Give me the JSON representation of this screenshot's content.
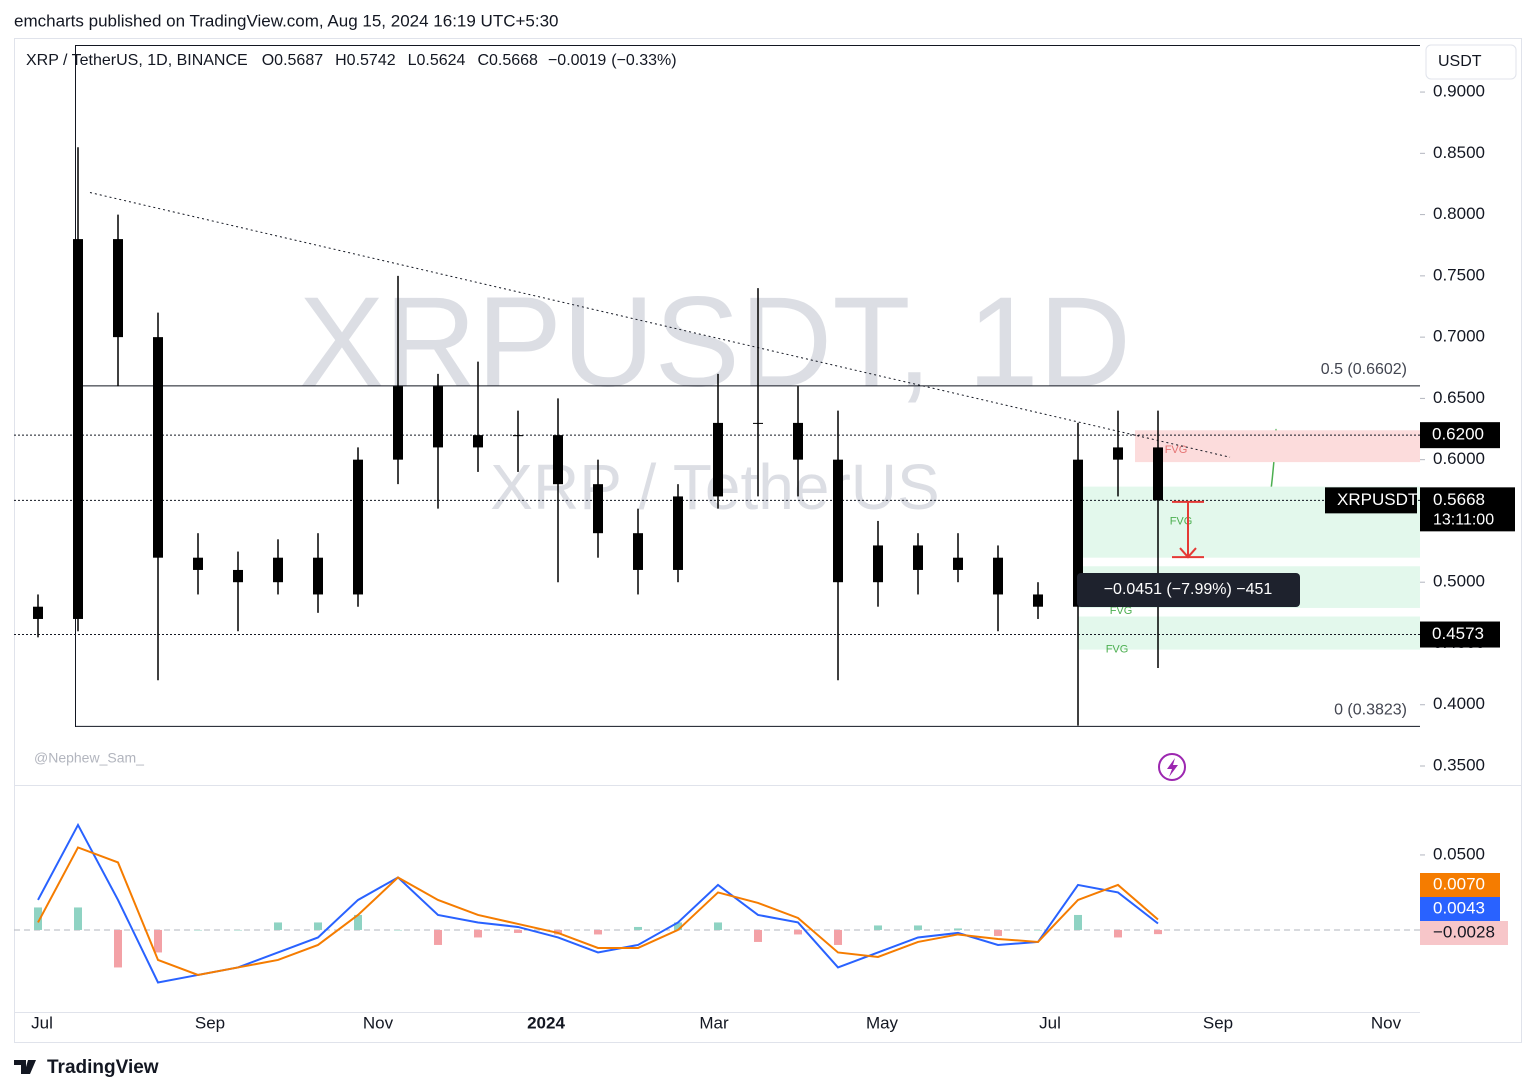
{
  "header": {
    "publisher": "emcharts published on TradingView.com, Aug 15, 2024 16:19 UTC+5:30",
    "brand": "TradingView",
    "author": "@Nephew_Sam_"
  },
  "chart_data": [
    {
      "type": "candlestick",
      "symbol_title": "XRP / TetherUS, 1D, BINANCE",
      "legend": {
        "ohlc_labels": [
          "O",
          "H",
          "L",
          "C"
        ],
        "ohlc": [
          0.5687,
          0.5742,
          0.5624,
          0.5668
        ],
        "change": {
          "value": -0.0019,
          "label": "−0.0019"
        },
        "change_pct": {
          "value": -0.33,
          "label": "(−0.33%)"
        }
      },
      "watermark": "XRPUSDT, 1D",
      "watermark_sub": "XRP / TetherUS",
      "currency": "USDT",
      "color": "#000000",
      "candles": {
        "open": [
          0.48,
          0.47,
          0.78,
          0.7,
          0.52,
          0.51,
          0.5,
          0.52,
          0.49,
          0.6,
          0.66,
          0.61,
          0.62,
          0.62,
          0.58,
          0.54,
          0.51,
          0.57,
          0.63,
          0.63,
          0.6,
          0.5,
          0.53,
          0.51,
          0.52,
          0.49,
          0.48,
          0.6,
          0.61
        ],
        "high": [
          0.49,
          0.855,
          0.8,
          0.72,
          0.54,
          0.525,
          0.535,
          0.54,
          0.61,
          0.75,
          0.67,
          0.68,
          0.64,
          0.65,
          0.6,
          0.56,
          0.58,
          0.67,
          0.74,
          0.66,
          0.64,
          0.55,
          0.54,
          0.54,
          0.53,
          0.5,
          0.63,
          0.64,
          0.64
        ],
        "low": [
          0.455,
          0.46,
          0.66,
          0.42,
          0.49,
          0.46,
          0.49,
          0.475,
          0.48,
          0.58,
          0.56,
          0.59,
          0.59,
          0.5,
          0.52,
          0.49,
          0.5,
          0.56,
          0.57,
          0.57,
          0.42,
          0.48,
          0.49,
          0.5,
          0.46,
          0.47,
          0.383,
          0.57,
          0.43
        ],
        "close": [
          0.47,
          0.78,
          0.7,
          0.52,
          0.51,
          0.5,
          0.52,
          0.49,
          0.6,
          0.66,
          0.61,
          0.62,
          0.62,
          0.58,
          0.54,
          0.51,
          0.57,
          0.63,
          0.63,
          0.6,
          0.5,
          0.53,
          0.51,
          0.52,
          0.49,
          0.48,
          0.6,
          0.61,
          0.5668
        ]
      },
      "ylim": [
        0.3345,
        0.9384
      ],
      "yticks": [
        {
          "value": 0.9,
          "label": "0.9000"
        },
        {
          "value": 0.85,
          "label": "0.8500"
        },
        {
          "value": 0.8,
          "label": "0.8000"
        },
        {
          "value": 0.75,
          "label": "0.7500"
        },
        {
          "value": 0.7,
          "label": "0.7000"
        },
        {
          "value": 0.65,
          "label": "0.6500"
        },
        {
          "value": 0.6,
          "label": "0.6000"
        },
        {
          "value": 0.55,
          "label": "0.5500"
        },
        {
          "value": 0.5,
          "label": "0.5000"
        },
        {
          "value": 0.45,
          "label": "0.4500"
        },
        {
          "value": 0.4,
          "label": "0.4000"
        },
        {
          "value": 0.35,
          "label": "0.3500"
        }
      ],
      "xlabels": [
        "Jul",
        "Sep",
        "Nov",
        "2024",
        "Mar",
        "May",
        "Jul",
        "Sep",
        "Nov"
      ],
      "fib_levels": [
        {
          "price": 0.6602,
          "label": "0.5 (0.6602)"
        },
        {
          "price": 0.3823,
          "label": "0 (0.3823)"
        }
      ],
      "levels": [
        {
          "value": 0.62,
          "label": "0.6200"
        },
        {
          "value": 0.4573,
          "label": "0.4573"
        }
      ],
      "last_price": {
        "value": 0.5668,
        "label": "0.5668",
        "name": "XRPUSDT",
        "countdown": "13:11:00"
      },
      "trendline": [
        0.818,
        0.602
      ],
      "fvg_zones": [
        {
          "label": "FVG",
          "range": [
            0.624,
            0.598
          ],
          "color": "#fcdcdc",
          "label_color": "#e57373"
        },
        {
          "label": "FVG",
          "range": [
            0.578,
            0.52
          ],
          "color": "#e3f8ec",
          "label_color": "#4caf50"
        },
        {
          "label": "FVG",
          "range": [
            0.513,
            0.479
          ],
          "color": "#e3f8ec",
          "label_color": "#4caf50"
        },
        {
          "label": "FVG",
          "range": [
            0.472,
            0.445
          ],
          "color": "#e3f8ec",
          "label_color": "#4caf50"
        }
      ],
      "measure": {
        "label": "−0.0451 (−7.99%) −451",
        "range": [
          0.5656,
          0.5205
        ],
        "color": "#e53935"
      }
    },
    {
      "type": "macd",
      "ylim": [
        -0.0547,
        0.0953
      ],
      "yticks": [
        {
          "value": 0.05,
          "label": "0.0500"
        }
      ],
      "series": [
        {
          "color": "#2962ff",
          "last_label": "0.0043",
          "values": [
            0.02,
            0.07,
            0.02,
            -0.035,
            -0.03,
            -0.025,
            -0.015,
            -0.005,
            0.02,
            0.035,
            0.01,
            0.005,
            0.002,
            -0.005,
            -0.015,
            -0.01,
            0.005,
            0.03,
            0.01,
            0.005,
            -0.025,
            -0.015,
            -0.005,
            -0.002,
            -0.01,
            -0.008,
            0.03,
            0.025,
            0.0043
          ]
        },
        {
          "color": "#f57c00",
          "last_label": "0.0070",
          "values": [
            0.005,
            0.055,
            0.045,
            -0.02,
            -0.03,
            -0.025,
            -0.02,
            -0.01,
            0.01,
            0.035,
            0.02,
            0.01,
            0.004,
            -0.002,
            -0.012,
            -0.012,
            0.0,
            0.025,
            0.018,
            0.008,
            -0.015,
            -0.018,
            -0.008,
            -0.003,
            -0.006,
            -0.008,
            0.02,
            0.03,
            0.007
          ]
        }
      ],
      "histogram": {
        "colors": [
          "#8fd3c3",
          "#f3a1a6"
        ],
        "last_label": "−0.0028",
        "values": [
          0.015,
          0.015,
          -0.025,
          -0.015,
          0,
          0,
          0.005,
          0.005,
          0.01,
          0,
          -0.01,
          -0.005,
          -0.002,
          -0.003,
          -0.003,
          0.002,
          0.005,
          0.005,
          -0.008,
          -0.003,
          -0.01,
          0.003,
          0.003,
          0.001,
          -0.004,
          0,
          0.01,
          -0.005,
          -0.0028
        ]
      }
    }
  ]
}
